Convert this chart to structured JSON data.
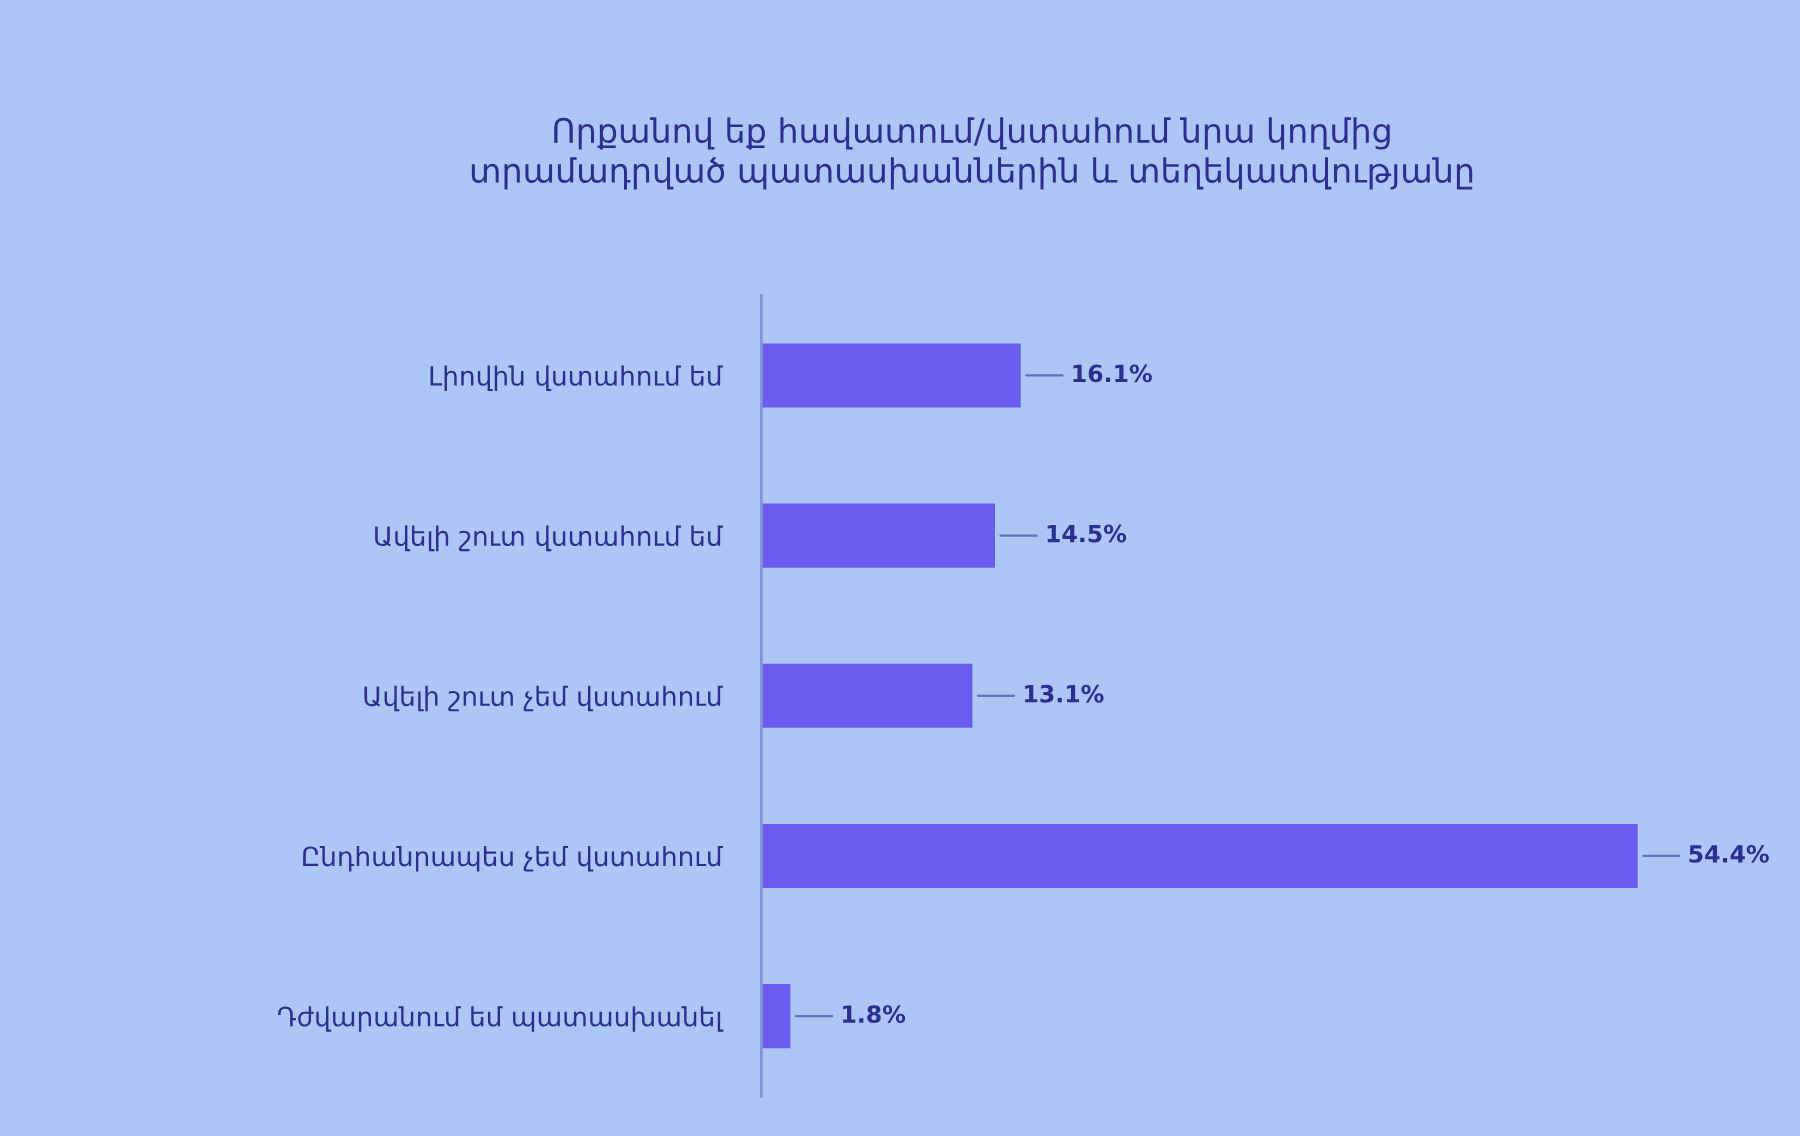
{
  "chart_data": {
    "type": "bar",
    "orientation": "horizontal",
    "title": "Որքանով եք հավատում/վստահում նրա կողմից\nտրամադրված պատասխաններին և տեղեկատվությանը",
    "categories": [
      "Լիովին վստահում եմ",
      "Ավելի շուտ վստահում եմ",
      "Ավելի շուտ չեմ վստահում",
      "Ընդհանրապես չեմ վստահում",
      "Դժվարանում եմ պատասխանել"
    ],
    "values": [
      16.1,
      14.5,
      13.1,
      54.4,
      1.8
    ],
    "value_labels": [
      "16.1%",
      "14.5%",
      "13.1%",
      "54.4%",
      "1.8%"
    ],
    "color": "#6b5cf0",
    "tick_labels": "y"
  }
}
